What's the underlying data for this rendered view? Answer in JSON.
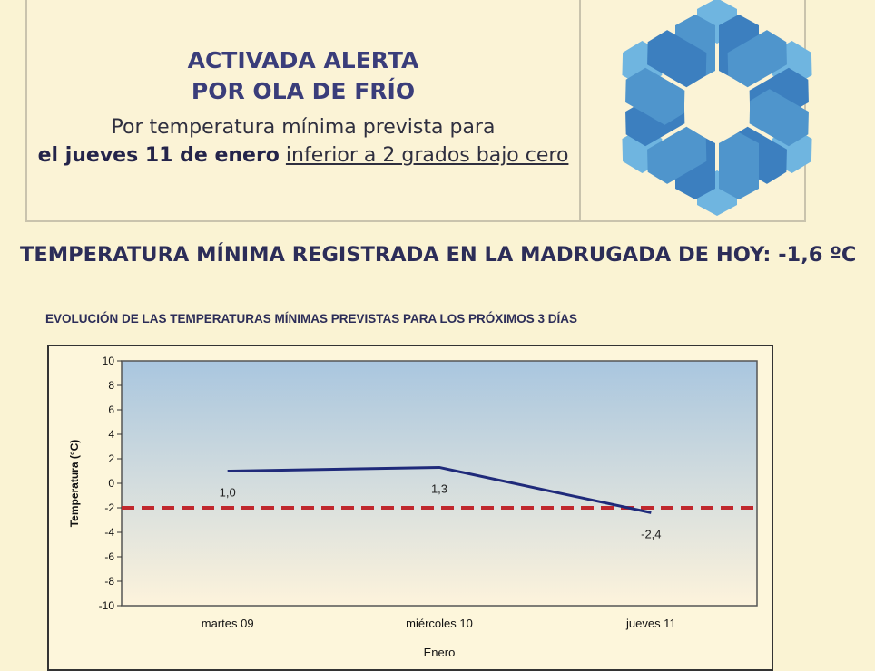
{
  "alert": {
    "line1": "ACTIVADA ALERTA",
    "line2": "POR OLA DE FRÍO",
    "line3": "Por temperatura mínima prevista para",
    "line4_bold": "el jueves 11 de enero",
    "line4_underline": "inferior a 2 grados bajo cero",
    "icon": "snowflake-icon"
  },
  "min_heading": "TEMPERATURA MÍNIMA REGISTRADA EN LA MADRUGADA DE HOY: -1,6 ºC",
  "chart_data": {
    "type": "line",
    "title": "EVOLUCIÓN DE LAS TEMPERATURAS MÍNIMAS PREVISTAS PARA LOS PRÓXIMOS 3 DÍAS",
    "xlabel": "Enero",
    "ylabel": "Temperatura (°C)",
    "categories": [
      "martes 09",
      "miércoles 10",
      "jueves 11"
    ],
    "values": [
      1.0,
      1.3,
      -2.4
    ],
    "data_labels": [
      "1,0",
      "1,3",
      "-2,4"
    ],
    "threshold": -2,
    "ylim": [
      -10,
      10
    ],
    "yticks": [
      "10",
      "8",
      "6",
      "4",
      "2",
      "0",
      "-2",
      "-4",
      "-6",
      "-8",
      "-10"
    ],
    "colors": {
      "line": "#1f2a7a",
      "threshold": "#c0282d",
      "plot_top": "#a9c6df",
      "plot_bottom": "#fdf3dc"
    },
    "grid": false,
    "legend": "none"
  }
}
